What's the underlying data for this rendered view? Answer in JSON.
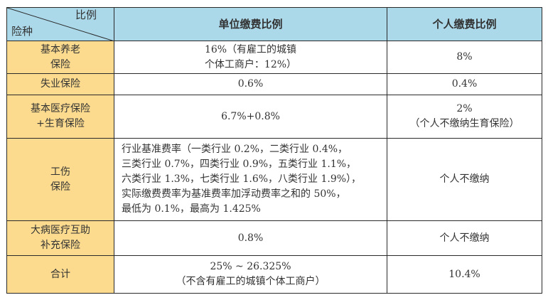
{
  "header": {
    "corner_top": "比例",
    "corner_bottom": "险种",
    "col1": "单位缴费比例",
    "col2": "个人缴费比例"
  },
  "colors": {
    "header_bg": "#abd9ea",
    "category_bg": "#fcdb8e"
  },
  "rows": [
    {
      "type": [
        "基本养老",
        "保险"
      ],
      "employer": [
        "16%（有雇工的城镇",
        "个体工商户：12%）"
      ],
      "personal": [
        "8%"
      ]
    },
    {
      "type": [
        "失业保险"
      ],
      "employer": [
        "0.6%"
      ],
      "personal": [
        "0.4%"
      ]
    },
    {
      "type": [
        "基本医疗保险",
        "+生育保险"
      ],
      "employer": [
        "6.7%+0.8%"
      ],
      "personal": [
        "2%",
        "（个人不缴纳生育保险）"
      ]
    },
    {
      "type": [
        "工伤",
        "保险"
      ],
      "employer": [
        "行业基准费率（一类行业 0.2%，二类行业 0.4%，",
        "三类行业 0.7%，四类行业 0.9%，五类行业 1.1%，",
        "六类行业 1.3%，七类行业 1.6%，八类行业 1.9%），",
        "实际缴费费率为基准费率加浮动费率之和的 50%，",
        "最低为 0.1%，最高为 1.425%"
      ],
      "personal": [
        "个人不缴纳"
      ]
    },
    {
      "type": [
        "大病医疗互助",
        "补充保险"
      ],
      "employer": [
        "0.8%"
      ],
      "personal": [
        "个人不缴纳"
      ]
    },
    {
      "type": [
        "合计"
      ],
      "employer": [
        "25% ~ 26.325%",
        "（不含有雇工的城镇个体工商户）"
      ],
      "personal": [
        "10.4%"
      ]
    }
  ]
}
